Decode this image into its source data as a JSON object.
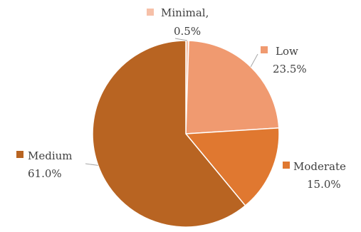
{
  "chart_data": {
    "type": "pie",
    "start_angle_deg": 0,
    "direction": "clockwise",
    "slices": [
      {
        "name": "Minimal,",
        "value": 0.5,
        "value_label": "0.5%",
        "color": "#f6c0a8"
      },
      {
        "name": "Low",
        "value": 23.5,
        "value_label": "23.5%",
        "color": "#f09a70"
      },
      {
        "name": "Moderate",
        "value": 15.0,
        "value_label": "15.0%",
        "color": "#e07830"
      },
      {
        "name": "Medium",
        "value": 61.0,
        "value_label": "61.0%",
        "color": "#b86422"
      }
    ]
  }
}
